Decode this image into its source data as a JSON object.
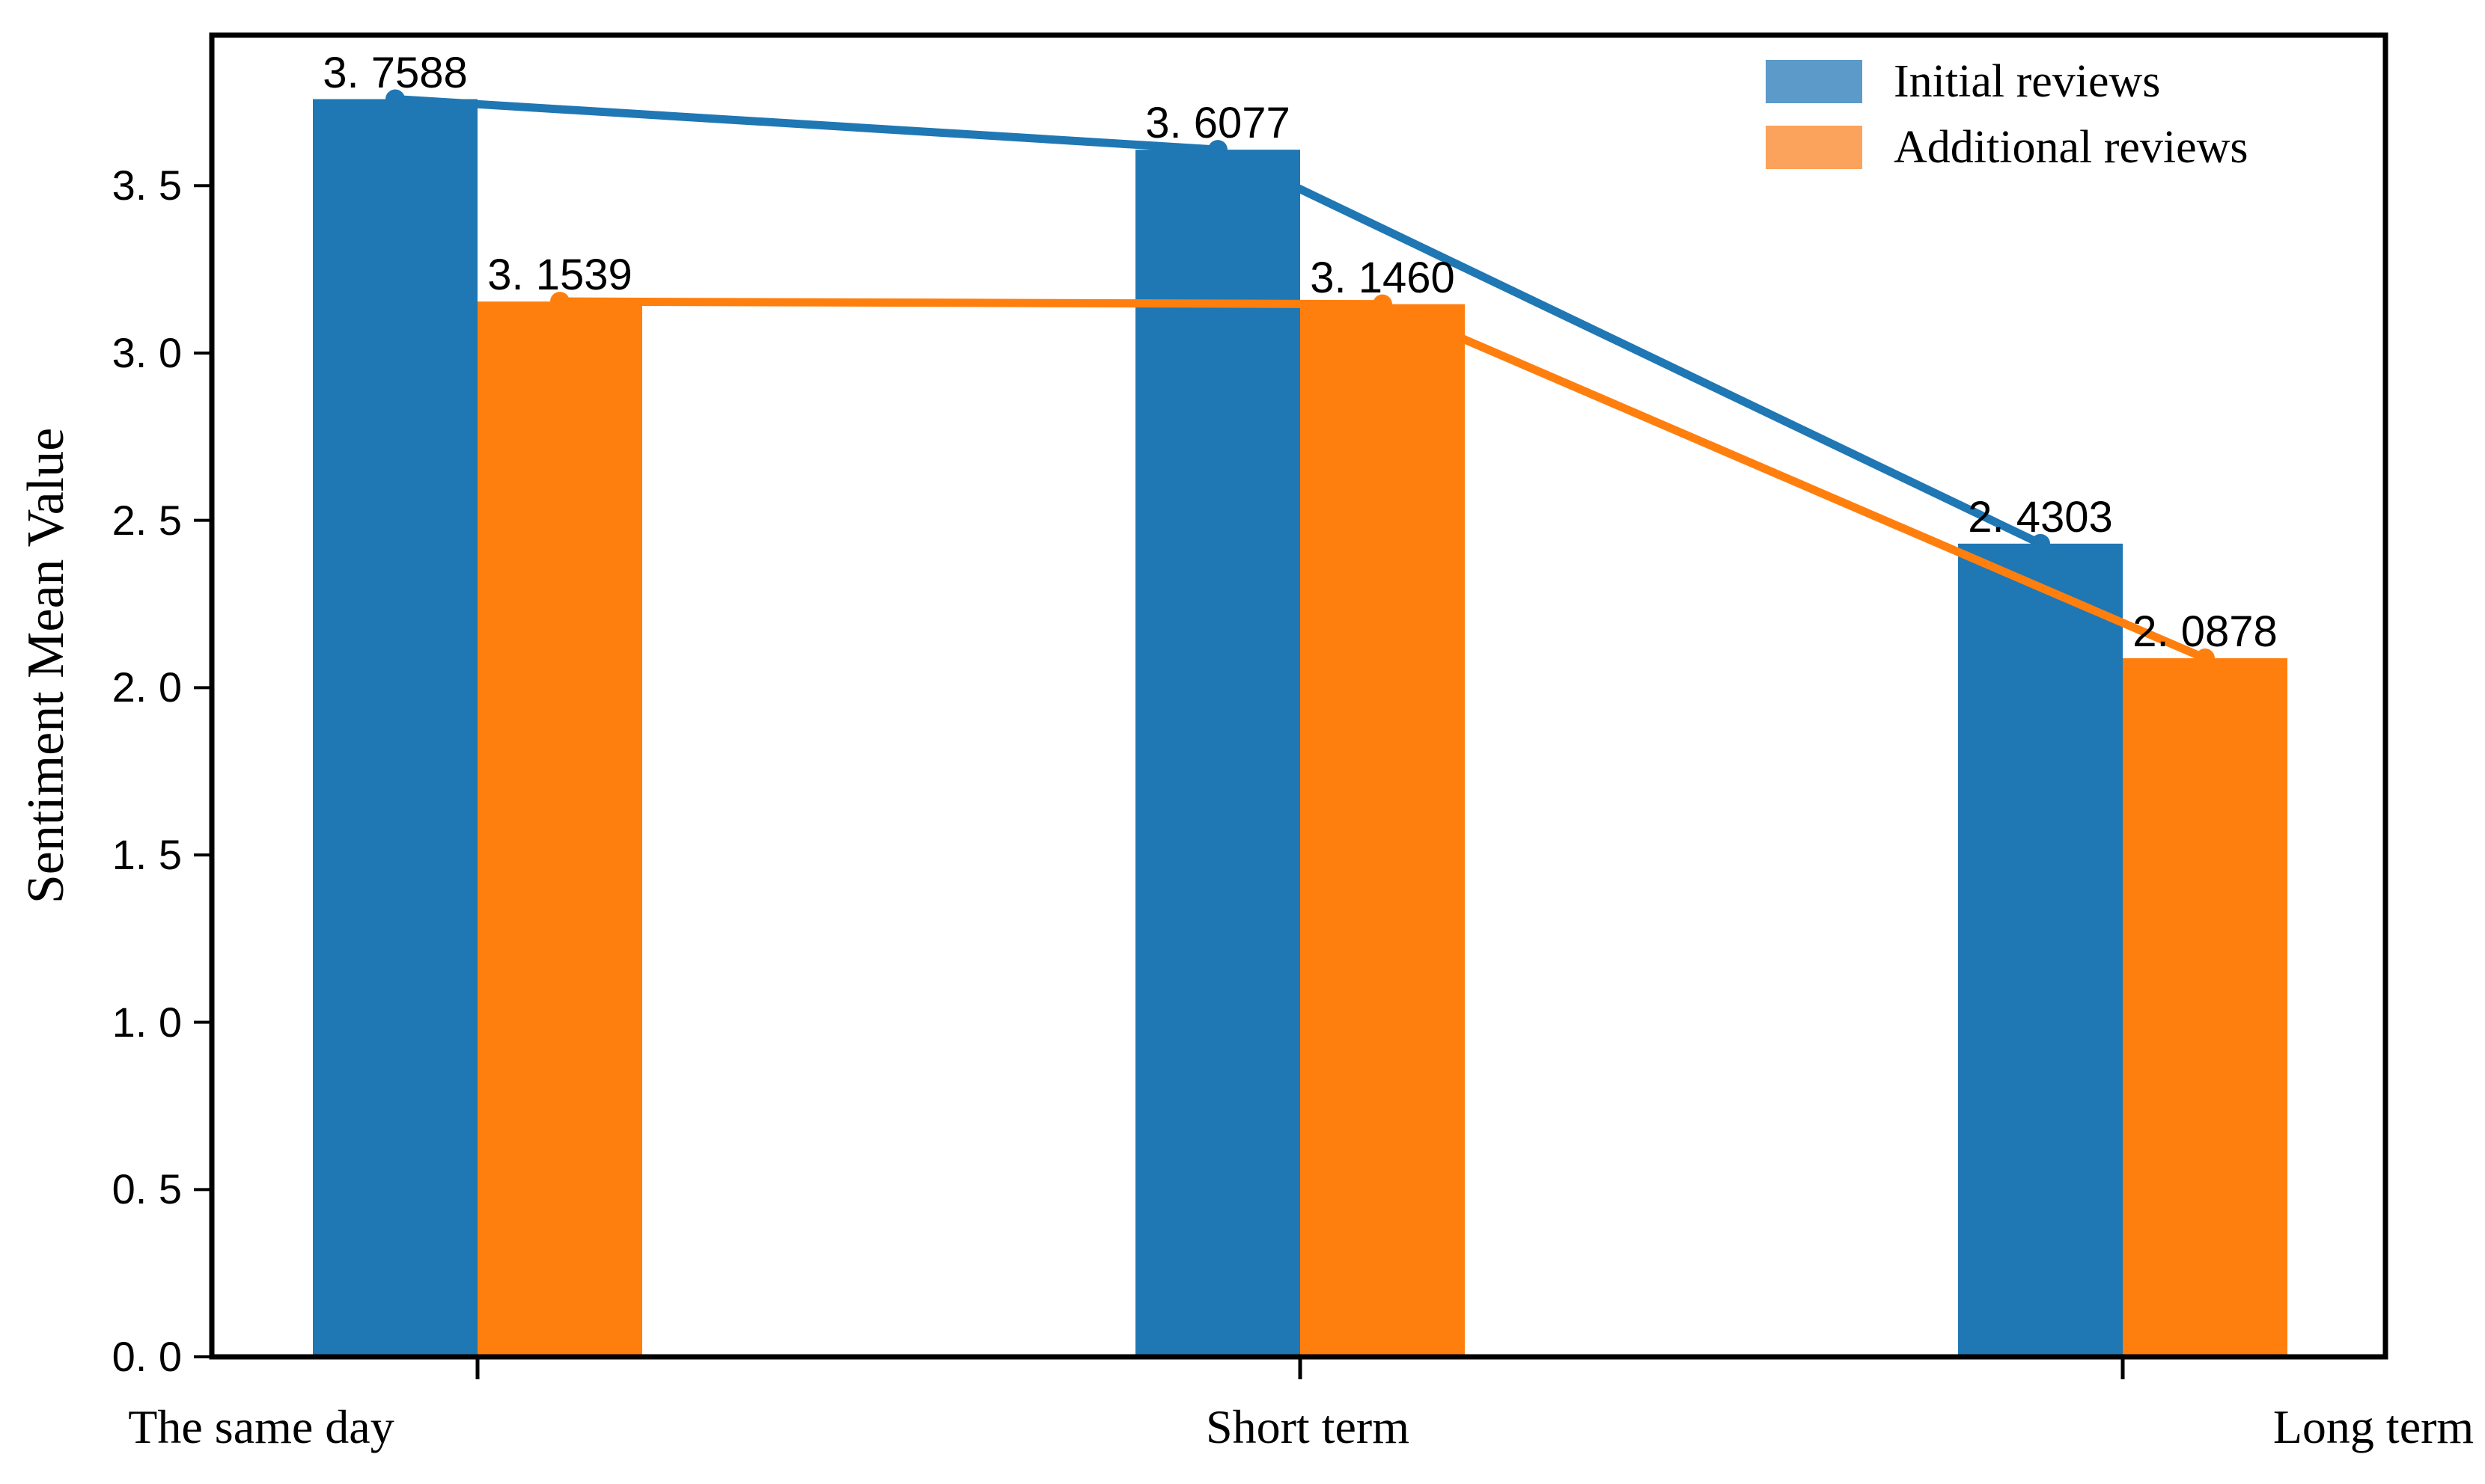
{
  "chart_data": {
    "type": "bar",
    "subtype": "grouped bars with line-and-marker overlay connecting bar tops",
    "title": "",
    "xlabel": "",
    "ylabel": "Sentiment Mean Value",
    "categories": [
      "The same day",
      "Short term",
      "Long term"
    ],
    "series": [
      {
        "name": "Initial reviews",
        "color": "#1f77b4",
        "legend_color": "#5b9ac9",
        "values": [
          3.7588,
          3.6077,
          2.4303
        ],
        "value_labels": [
          "3. 7588",
          "3. 6077",
          "2. 4303"
        ]
      },
      {
        "name": "Additional reviews",
        "color": "#ff7f0e",
        "legend_color": "#fba35c",
        "values": [
          3.1539,
          3.146,
          2.0878
        ],
        "value_labels": [
          "3. 1539",
          "3. 1460",
          "2. 0878"
        ]
      }
    ],
    "yticks": {
      "values": [
        0,
        0.5,
        1,
        1.5,
        2,
        2.5,
        3,
        3.5
      ],
      "labels": [
        "0. 0",
        "0. 5",
        "1. 0",
        "1. 5",
        "2. 0",
        "2. 5",
        "3. 0",
        "3. 5"
      ]
    },
    "ylim": [
      0,
      3.95
    ],
    "grid": false,
    "legend": {
      "position": "upper right",
      "entries": [
        "Initial reviews",
        "Additional reviews"
      ]
    },
    "marker": "circle",
    "axis_color": "#000000",
    "background": "#ffffff"
  }
}
